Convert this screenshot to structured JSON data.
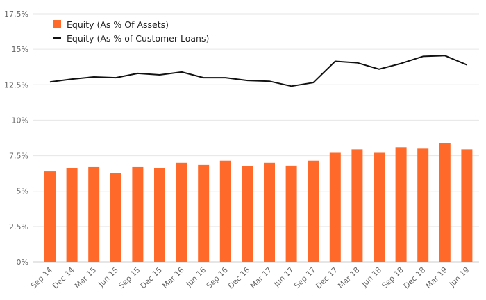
{
  "chart_data": {
    "type": "bar",
    "title": "",
    "xlabel": "",
    "ylabel": "",
    "ylim": [
      0,
      17.5
    ],
    "y_ticks": [
      0,
      2.5,
      5,
      7.5,
      10,
      12.5,
      15,
      17.5
    ],
    "y_tick_labels": [
      "0%",
      "2.5%",
      "5%",
      "7.5%",
      "10%",
      "12.5%",
      "15%",
      "17.5%"
    ],
    "grid": true,
    "legend_position": "top-left",
    "categories": [
      "Sep 14",
      "Dec 14",
      "Mar 15",
      "Jun 15",
      "Sep 15",
      "Dec 15",
      "Mar 16",
      "Jun 16",
      "Sep 16",
      "Dec 16",
      "Mar 17",
      "Jun 17",
      "Sep 17",
      "Dec 17",
      "Mar 18",
      "Jun 18",
      "Sep 18",
      "Dec 18",
      "Mar 19",
      "Jun 19"
    ],
    "series": [
      {
        "name": "Equity (As % Of Assets)",
        "type": "bar",
        "color": "#ff6a2b",
        "values": [
          6.4,
          6.6,
          6.7,
          6.3,
          6.7,
          6.6,
          7.0,
          6.85,
          7.15,
          6.75,
          7.0,
          6.8,
          7.15,
          7.7,
          7.95,
          7.7,
          8.1,
          8.0,
          8.4,
          7.95
        ]
      },
      {
        "name": "Equity (As % of Customer Loans)",
        "type": "line",
        "color": "#111111",
        "values": [
          12.7,
          12.9,
          13.05,
          13.0,
          13.3,
          13.2,
          13.4,
          13.0,
          13.0,
          12.8,
          12.75,
          12.4,
          12.65,
          14.15,
          14.05,
          13.6,
          14.0,
          14.5,
          14.55,
          13.9
        ]
      }
    ]
  },
  "colors": {
    "grid": "#e6e6e6",
    "axis": "#cccccc",
    "tick_text": "#666666"
  }
}
